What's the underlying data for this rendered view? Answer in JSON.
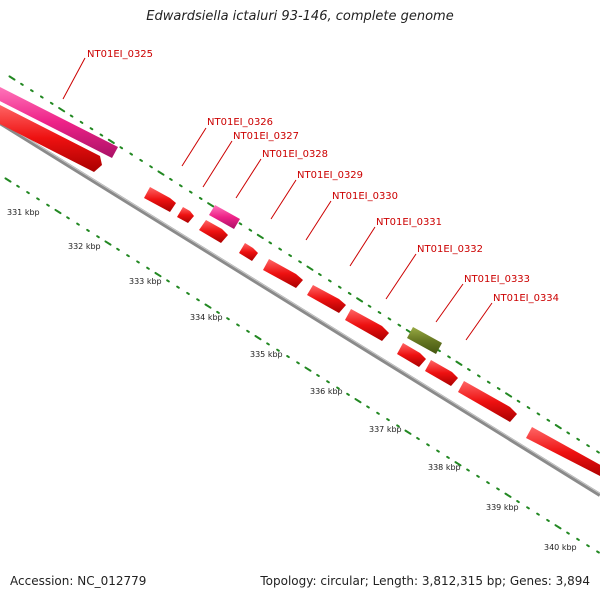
{
  "title": "Edwardsiella ictaluri 93-146, complete genome",
  "accession": "Accession: NC_012779",
  "topology": "Topology: circular; Length: 3,812,315 bp; Genes: 3,894",
  "colors": {
    "forward_gene": "#ee1111",
    "pink_gene": "#ee2288",
    "green_gene": "#667722",
    "tick": "#228822",
    "backbone": "#888888",
    "label": "#cc0000"
  },
  "gene_labels": [
    "NT01EI_0325",
    "NT01EI_0326",
    "NT01EI_0327",
    "NT01EI_0328",
    "NT01EI_0329",
    "NT01EI_0330",
    "NT01EI_0331",
    "NT01EI_0332",
    "NT01EI_0333",
    "NT01EI_0334"
  ],
  "kbp_labels": [
    "331 kbp",
    "332 kbp",
    "333 kbp",
    "334 kbp",
    "335 kbp",
    "336 kbp",
    "337 kbp",
    "338 kbp",
    "339 kbp",
    "340 kbp"
  ]
}
